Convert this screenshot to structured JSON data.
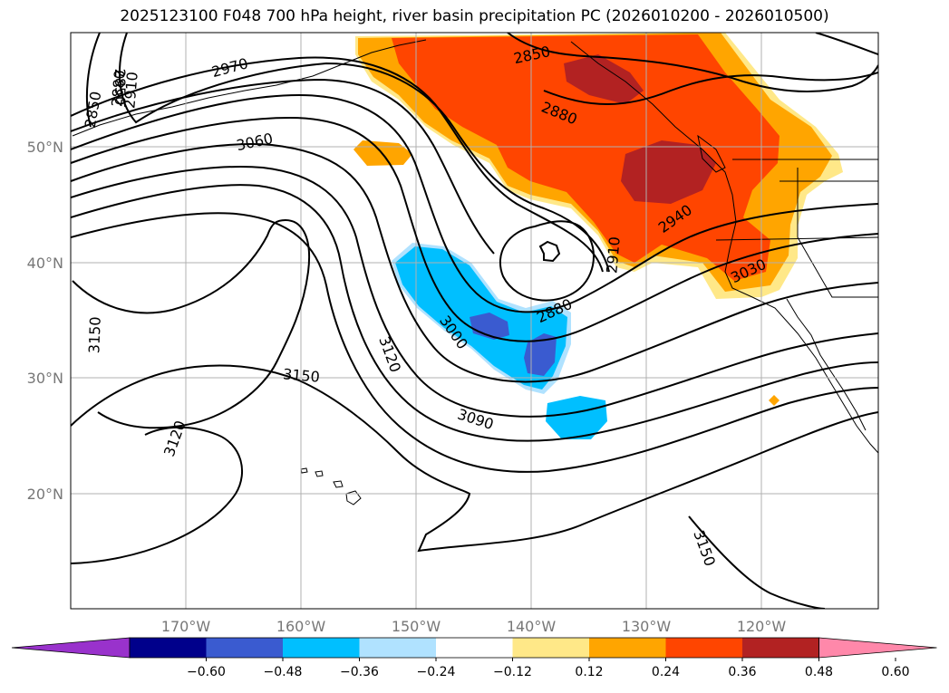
{
  "title": "2025123100 F048 700 hPa height, river basin precipitation PC (2026010200 - 2026010500)",
  "map": {
    "lon_labels": [
      "170°W",
      "160°W",
      "150°W",
      "140°W",
      "130°W",
      "120°W"
    ],
    "lat_labels": [
      "50°N",
      "40°N",
      "30°N",
      "20°N"
    ],
    "contour_labels": [
      "2850",
      "2850",
      "2880",
      "2910",
      "2970",
      "2850",
      "2880",
      "2910",
      "3060",
      "2940",
      "3030",
      "2880",
      "3000",
      "3120",
      "3150",
      "3150",
      "3090",
      "3120",
      "3150"
    ],
    "colors": {
      "ocean_bg": "#ffffff",
      "grid": "#b0b0b0",
      "contour": "#000000"
    }
  },
  "colorbar": {
    "labels": [
      "−0.60",
      "−0.48",
      "−0.36",
      "−0.24",
      "−0.12",
      "0.12",
      "0.24",
      "0.36",
      "0.48",
      "0.60"
    ],
    "colors": [
      "#9932cc",
      "#00008b",
      "#3a5bd0",
      "#00bfff",
      "#b0e2ff",
      "#ffffff",
      "#ffe888",
      "#ffa500",
      "#ff4500",
      "#b22222",
      "#ff88aa"
    ]
  }
}
